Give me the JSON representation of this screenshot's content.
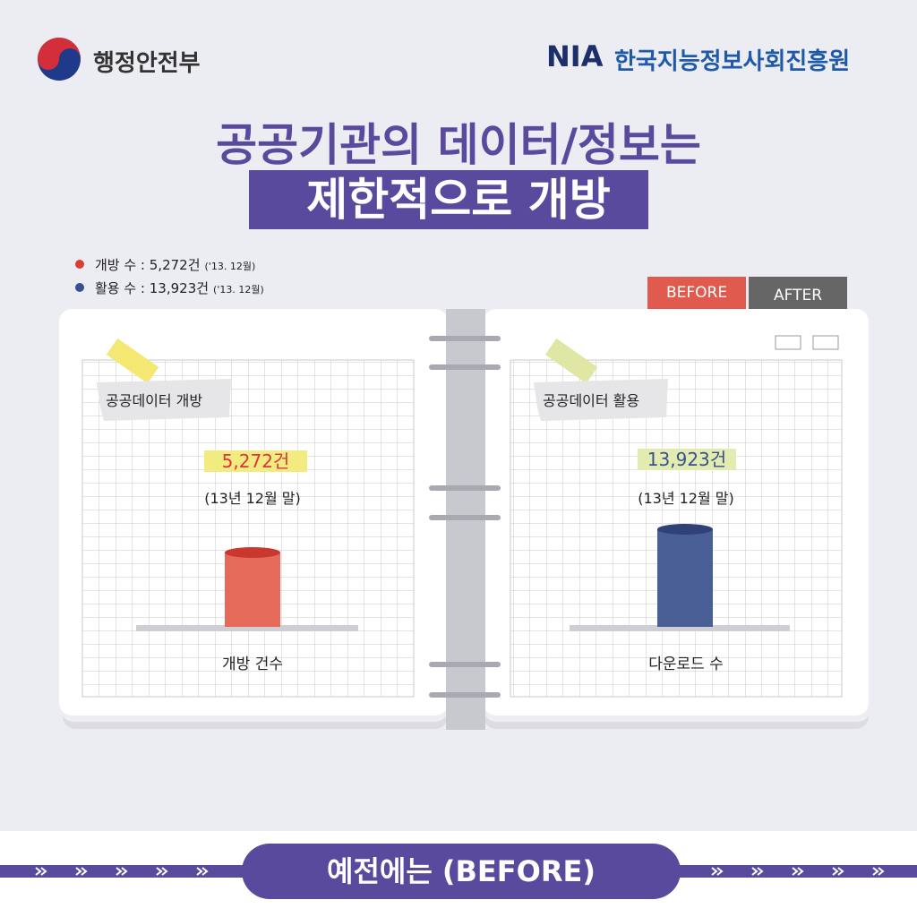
{
  "header": {
    "ministry": "행정안전부",
    "agency_abbr": "NIA",
    "agency": "한국지능정보사회진흥원"
  },
  "title": {
    "line1": "공공기관의 데이터/정보는",
    "line2": "제한적으로 개방"
  },
  "legend": [
    {
      "label": "개방 수 : 5,272건",
      "note": "('13. 12월)",
      "color": "#d8412f"
    },
    {
      "label": "활용 수 : 13,923건",
      "note": "('13. 12월)",
      "color": "#3a4f8f"
    }
  ],
  "tabs": [
    "BEFORE",
    "AFTER"
  ],
  "pages": [
    {
      "tag": "공공데이터 개방",
      "value": "5,272건",
      "period": "(13년 12월 말)",
      "axis_label": "개방 건수"
    },
    {
      "tag": "공공데이터 활용",
      "value": "13,923건",
      "period": "(13년 12월 말)",
      "axis_label": "다운로드 수"
    }
  ],
  "footer": {
    "label": "예전에는 (BEFORE)"
  }
}
